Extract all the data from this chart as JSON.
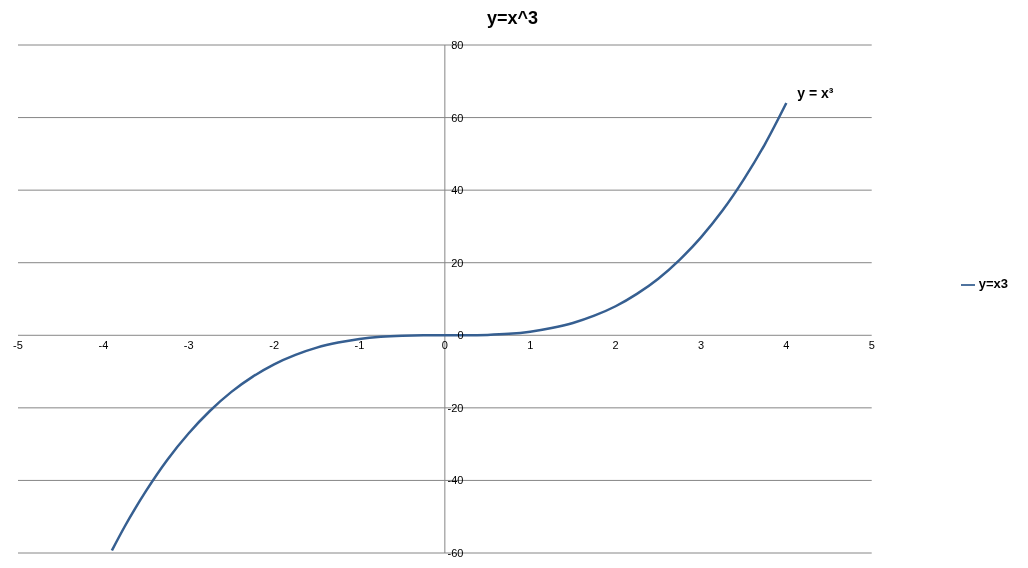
{
  "chart_data": {
    "type": "line",
    "title": "y=x^3",
    "x": [
      -3.9,
      -3.75,
      -3.5,
      -3.25,
      -3,
      -2.75,
      -2.5,
      -2.25,
      -2,
      -1.75,
      -1.5,
      -1.25,
      -1,
      -0.75,
      -0.5,
      -0.25,
      0,
      0.25,
      0.5,
      0.75,
      1,
      1.25,
      1.5,
      1.75,
      2,
      2.25,
      2.5,
      2.75,
      3,
      3.25,
      3.5,
      3.75,
      4
    ],
    "series": [
      {
        "name": "y=x3",
        "color": "#365f91",
        "values": [
          -59.3,
          -52.7,
          -42.9,
          -34.3,
          -27,
          -20.8,
          -15.6,
          -11.4,
          -8,
          -5.4,
          -3.4,
          -2,
          -1,
          -0.4,
          -0.1,
          0,
          0,
          0,
          0.1,
          0.4,
          1,
          2,
          3.4,
          5.4,
          8,
          11.4,
          15.6,
          20.8,
          27,
          34.3,
          42.9,
          52.7,
          64
        ]
      }
    ],
    "xlim": [
      -5,
      5
    ],
    "xticks": [
      -5,
      -4,
      -3,
      -2,
      -1,
      0,
      1,
      2,
      3,
      4,
      5
    ],
    "ylim": [
      -60,
      80
    ],
    "yticks": [
      -60,
      -40,
      -20,
      0,
      20,
      40,
      60,
      80
    ],
    "grid": "y",
    "legend": "right",
    "marker": "none",
    "line_style": "solid",
    "annotations": [
      {
        "text": "y = x³",
        "x": 4,
        "y": 64
      }
    ]
  }
}
